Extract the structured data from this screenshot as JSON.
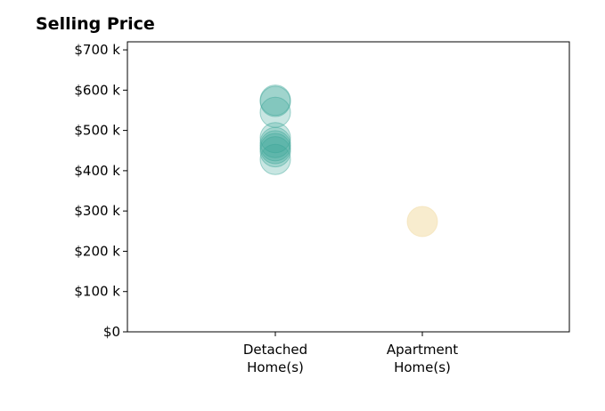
{
  "chart_data": {
    "type": "scatter",
    "title": "Selling Price",
    "xlabel": "",
    "ylabel": "",
    "categories": [
      {
        "line1": "Detached",
        "line2": "Home(s)"
      },
      {
        "line1": "Apartment",
        "line2": "Home(s)"
      }
    ],
    "ylim": [
      0,
      720000
    ],
    "yticks": [
      {
        "value": 0,
        "label": "$0"
      },
      {
        "value": 100000,
        "label": "$100 k"
      },
      {
        "value": 200000,
        "label": "$200 k"
      },
      {
        "value": 300000,
        "label": "$300 k"
      },
      {
        "value": 400000,
        "label": "$400 k"
      },
      {
        "value": 500000,
        "label": "$500 k"
      },
      {
        "value": 600000,
        "label": "$600 k"
      },
      {
        "value": 700000,
        "label": "$700 k"
      }
    ],
    "grid": false,
    "legend": "none",
    "series": [
      {
        "category": "Detached Home(s)",
        "color": "#3aa597",
        "values": [
          575000,
          572000,
          545000,
          482000,
          470000,
          462000,
          455000,
          447000,
          428000
        ]
      },
      {
        "category": "Apartment Home(s)",
        "color": "#f2dca6",
        "values": [
          274000
        ]
      }
    ]
  }
}
